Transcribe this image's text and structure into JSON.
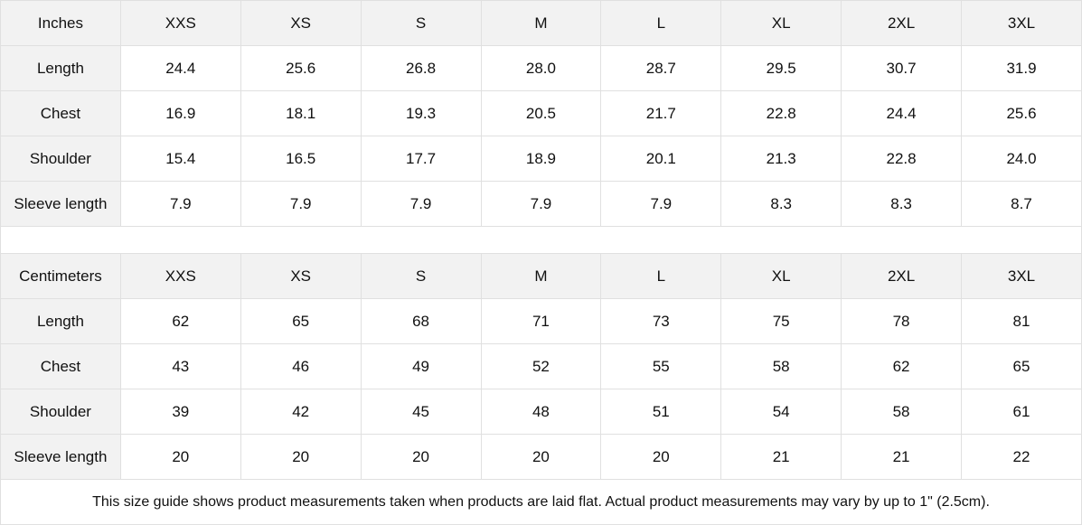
{
  "sizes": [
    "XXS",
    "XS",
    "S",
    "M",
    "L",
    "XL",
    "2XL",
    "3XL"
  ],
  "inches": {
    "label": "Inches",
    "rows": [
      {
        "label": "Length",
        "values": [
          "24.4",
          "25.6",
          "26.8",
          "28.0",
          "28.7",
          "29.5",
          "30.7",
          "31.9"
        ]
      },
      {
        "label": "Chest",
        "values": [
          "16.9",
          "18.1",
          "19.3",
          "20.5",
          "21.7",
          "22.8",
          "24.4",
          "25.6"
        ]
      },
      {
        "label": "Shoulder",
        "values": [
          "15.4",
          "16.5",
          "17.7",
          "18.9",
          "20.1",
          "21.3",
          "22.8",
          "24.0"
        ]
      },
      {
        "label": "Sleeve length",
        "values": [
          "7.9",
          "7.9",
          "7.9",
          "7.9",
          "7.9",
          "8.3",
          "8.3",
          "8.7"
        ]
      }
    ]
  },
  "centimeters": {
    "label": "Centimeters",
    "rows": [
      {
        "label": "Length",
        "values": [
          "62",
          "65",
          "68",
          "71",
          "73",
          "75",
          "78",
          "81"
        ]
      },
      {
        "label": "Chest",
        "values": [
          "43",
          "46",
          "49",
          "52",
          "55",
          "58",
          "62",
          "65"
        ]
      },
      {
        "label": "Shoulder",
        "values": [
          "39",
          "42",
          "45",
          "48",
          "51",
          "54",
          "58",
          "61"
        ]
      },
      {
        "label": "Sleeve length",
        "values": [
          "20",
          "20",
          "20",
          "20",
          "20",
          "21",
          "21",
          "22"
        ]
      }
    ]
  },
  "footer": "This size guide shows product measurements taken when products are laid flat.  Actual product measurements may vary by up to 1\" (2.5cm)."
}
